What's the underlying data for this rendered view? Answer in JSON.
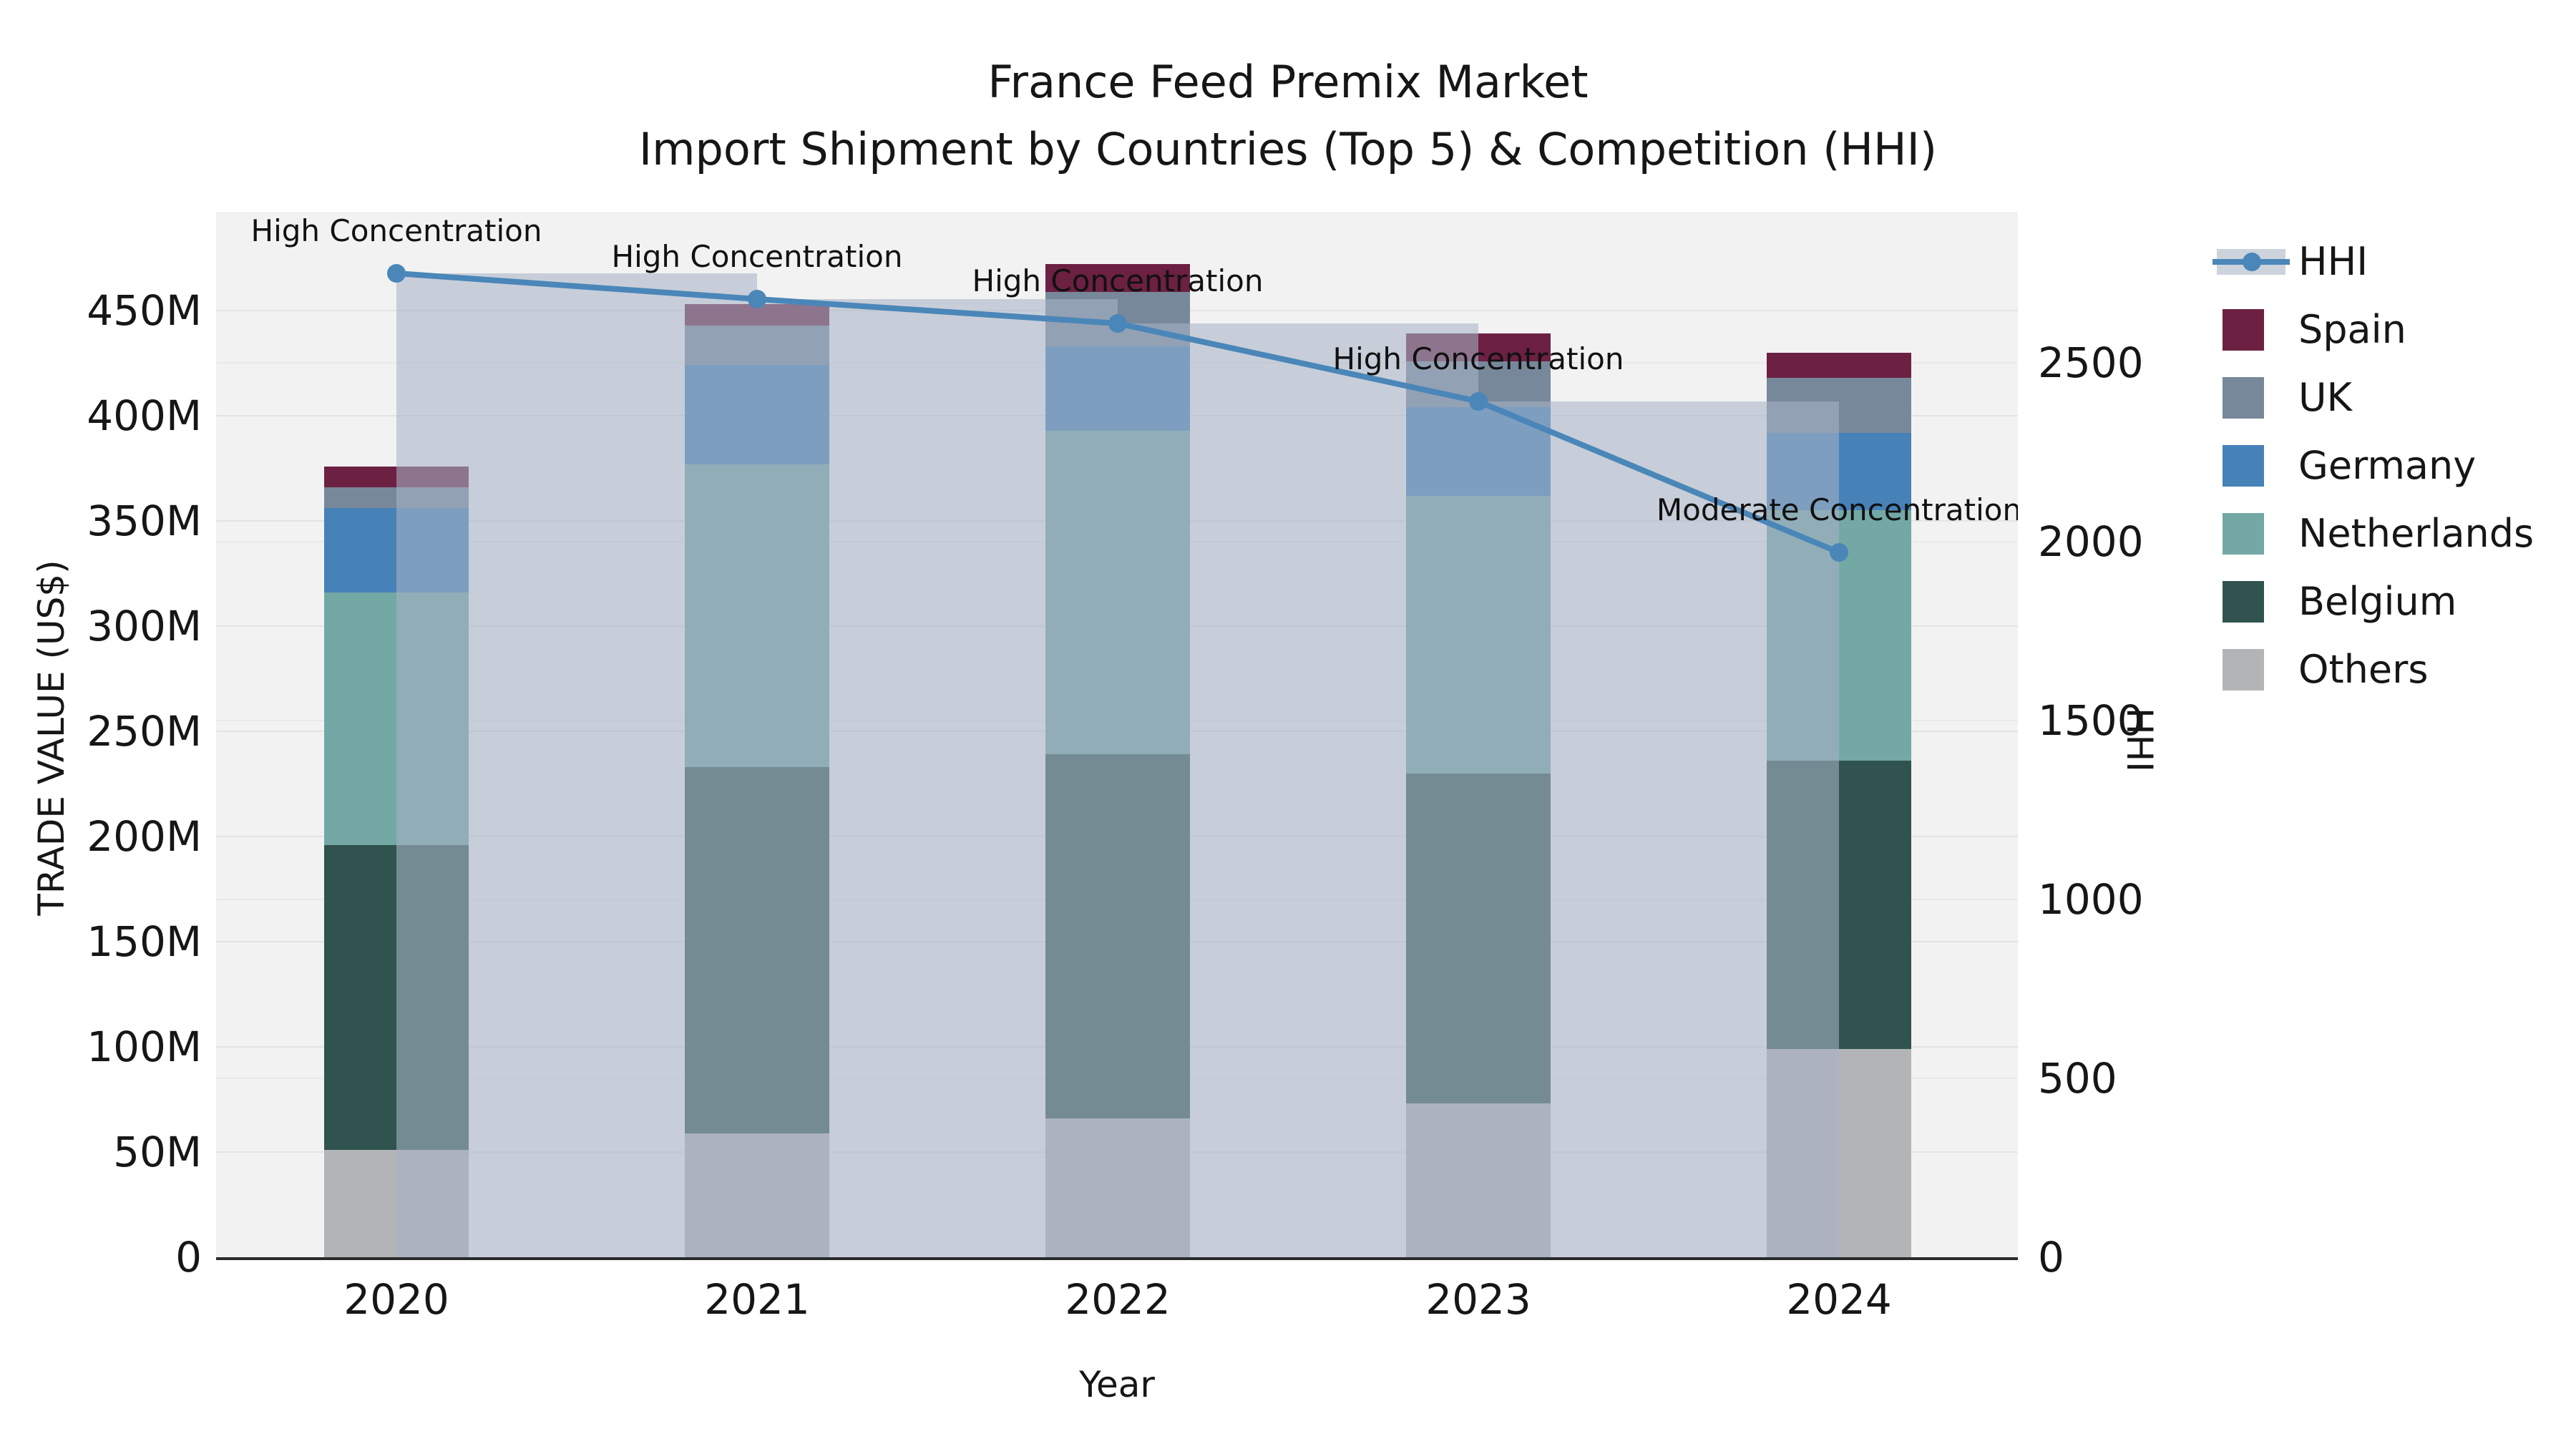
{
  "title": {
    "line1": "France Feed Premix Market",
    "line2": "Import Shipment by Countries (Top 5) & Competition (HHI)"
  },
  "chart_data": {
    "type": "bar",
    "subtype": "stacked-bars-with-hhi-line-and-step-area",
    "title": "France Feed Premix Market — Import Shipment by Countries (Top 5) & Competition (HHI)",
    "categories": [
      "2020",
      "2021",
      "2022",
      "2023",
      "2024"
    ],
    "unit": "US$ millions",
    "series": [
      {
        "name": "Others",
        "color": "#b3b4b6",
        "values": [
          51,
          59,
          66,
          73,
          99
        ]
      },
      {
        "name": "Belgium",
        "color": "#315350",
        "values": [
          145,
          174,
          173,
          157,
          137
        ]
      },
      {
        "name": "Netherlands",
        "color": "#73a8a5",
        "values": [
          120,
          144,
          154,
          132,
          119
        ]
      },
      {
        "name": "Germany",
        "color": "#4681b8",
        "values": [
          40,
          47,
          40,
          42,
          37
        ]
      },
      {
        "name": "UK",
        "color": "#78889b",
        "values": [
          10,
          19,
          26,
          22,
          26
        ]
      },
      {
        "name": "Spain",
        "color": "#6c2042",
        "values": [
          10,
          10,
          13,
          13,
          12
        ]
      }
    ],
    "totals_millions": [
      376,
      453,
      472,
      439,
      430
    ],
    "line_series": {
      "name": "HHI",
      "values": [
        2750,
        2678,
        2610,
        2392,
        1970
      ],
      "color": "#4a86b8",
      "area_color": "rgba(167,180,198,0.58)"
    },
    "annotations": [
      {
        "category": "2020",
        "text": "High Concentration"
      },
      {
        "category": "2021",
        "text": "High Concentration"
      },
      {
        "category": "2022",
        "text": "High Concentration"
      },
      {
        "category": "2023",
        "text": "High Concentration"
      },
      {
        "category": "2024",
        "text": "Moderate Concentration"
      }
    ],
    "left_axis": {
      "label": "TRADE VALUE (US$)",
      "tick_values": [
        0,
        50,
        100,
        150,
        200,
        250,
        300,
        350,
        400,
        450
      ],
      "tick_labels": [
        "0",
        "50M",
        "100M",
        "150M",
        "200M",
        "250M",
        "300M",
        "350M",
        "400M",
        "450M"
      ],
      "range_millions": [
        0,
        497
      ],
      "grid": true
    },
    "right_axis": {
      "label": "HHI",
      "tick_values": [
        0,
        500,
        1000,
        1500,
        2000,
        2500
      ],
      "tick_labels": [
        "0",
        "500",
        "1000",
        "1500",
        "2000",
        "2500"
      ],
      "range": [
        0,
        2922
      ],
      "grid": true
    },
    "x_axis": {
      "label": "Year"
    },
    "legend": {
      "position": "right",
      "items": [
        {
          "label": "HHI",
          "type": "line-on-band"
        },
        {
          "label": "Spain",
          "type": "square",
          "color": "#6c2042"
        },
        {
          "label": "UK",
          "type": "square",
          "color": "#78889b"
        },
        {
          "label": "Germany",
          "type": "square",
          "color": "#4681b8"
        },
        {
          "label": "Netherlands",
          "type": "square",
          "color": "#73a8a5"
        },
        {
          "label": "Belgium",
          "type": "square",
          "color": "#315350"
        },
        {
          "label": "Others",
          "type": "square",
          "color": "#b3b4b6"
        }
      ]
    }
  }
}
